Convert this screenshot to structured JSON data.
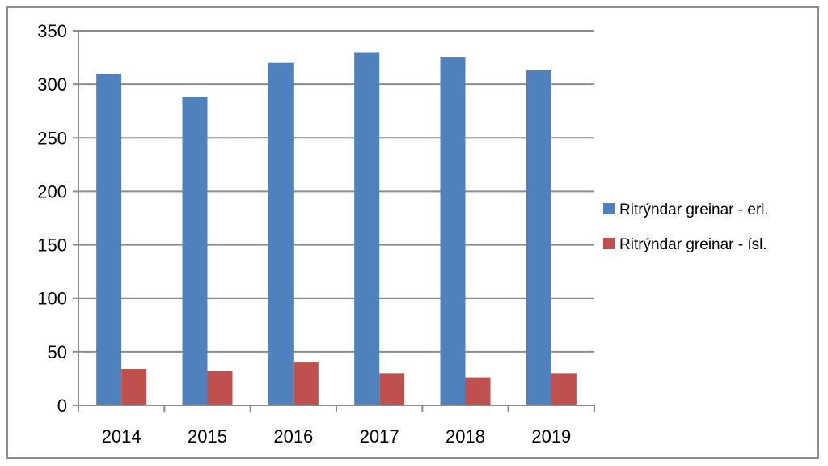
{
  "chart_data": {
    "type": "bar",
    "categories": [
      "2014",
      "2015",
      "2016",
      "2017",
      "2018",
      "2019"
    ],
    "series": [
      {
        "name": "Ritrýndar greinar - erl.",
        "color": "#4f81bd",
        "values": [
          310,
          288,
          320,
          330,
          325,
          313
        ]
      },
      {
        "name": "Ritrýndar greinar - ísl.",
        "color": "#c0504d",
        "values": [
          34,
          32,
          40,
          30,
          26,
          30
        ]
      }
    ],
    "title": "",
    "xlabel": "",
    "ylabel": "",
    "ylim": [
      0,
      350
    ],
    "yticks": [
      0,
      50,
      100,
      150,
      200,
      250,
      300,
      350
    ],
    "grid": true,
    "legend_position": "right"
  }
}
